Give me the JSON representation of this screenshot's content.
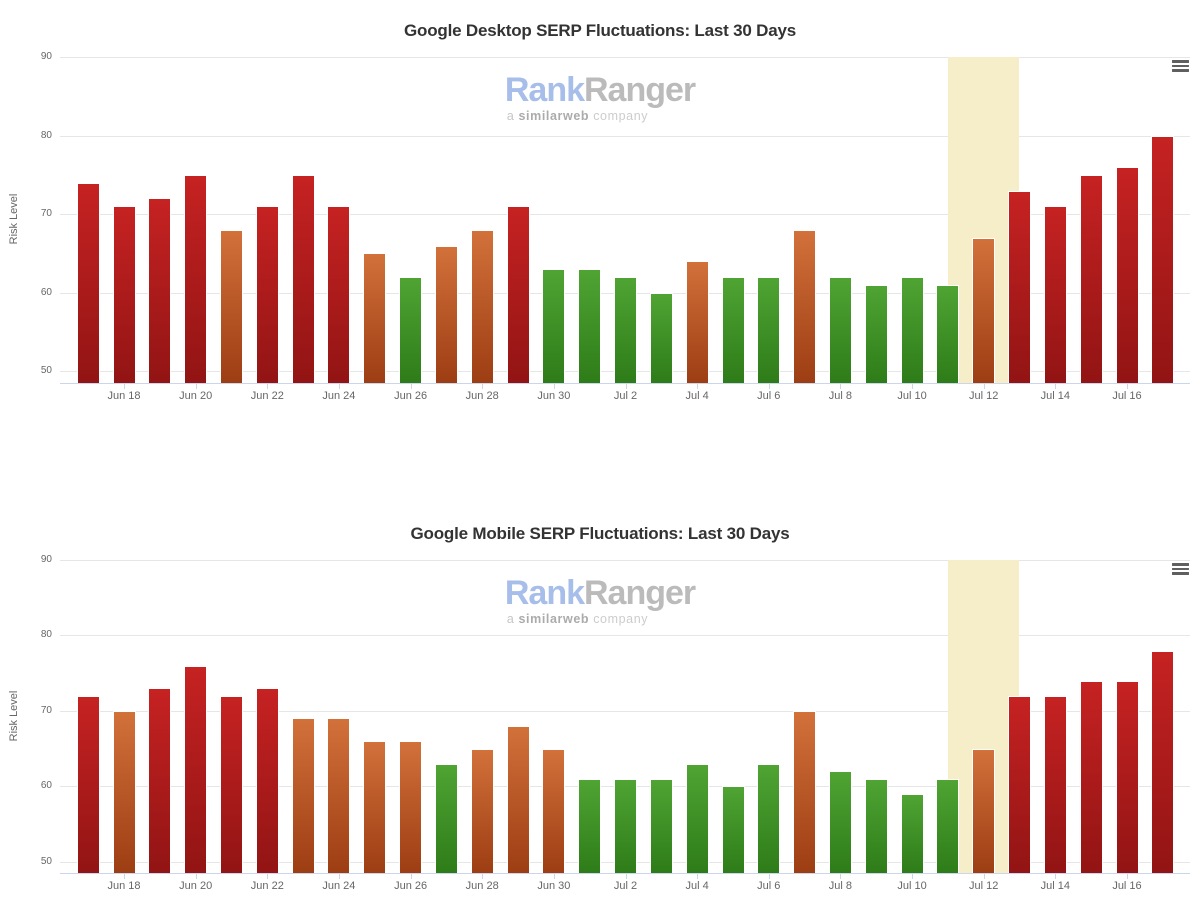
{
  "chart_data": [
    {
      "type": "bar",
      "title": "Google Desktop SERP Fluctuations: Last 30 Days",
      "ylabel": "Risk Level",
      "ylim": [
        48.5,
        90
      ],
      "y_ticks": [
        50,
        60,
        70,
        80,
        90
      ],
      "grid": "on",
      "legend": "none",
      "categories": [
        "Jun 17",
        "Jun 18",
        "Jun 19",
        "Jun 20",
        "Jun 21",
        "Jun 22",
        "Jun 23",
        "Jun 24",
        "Jun 25",
        "Jun 26",
        "Jun 27",
        "Jun 28",
        "Jun 29",
        "Jun 30",
        "Jul 1",
        "Jul 2",
        "Jul 3",
        "Jul 4",
        "Jul 5",
        "Jul 6",
        "Jul 7",
        "Jul 8",
        "Jul 9",
        "Jul 10",
        "Jul 11",
        "Jul 12",
        "Jul 13",
        "Jul 14",
        "Jul 15",
        "Jul 16",
        "Jul 17"
      ],
      "values": [
        74,
        71,
        72,
        75,
        68,
        71,
        75,
        71,
        65,
        62,
        66,
        68,
        71,
        63,
        63,
        62,
        60,
        64,
        62,
        62,
        68,
        62,
        61,
        62,
        61,
        67,
        73,
        71,
        75,
        76,
        80
      ],
      "x_tick_labels": [
        "Jun 18",
        "Jun 20",
        "Jun 22",
        "Jun 24",
        "Jun 26",
        "Jun 28",
        "Jun 30",
        "Jul 2",
        "Jul 4",
        "Jul 6",
        "Jul 8",
        "Jul 10",
        "Jul 12",
        "Jul 14",
        "Jul 16"
      ],
      "plot_band": {
        "from": "Jul 11",
        "to": "Jul 13"
      }
    },
    {
      "type": "bar",
      "title": "Google Mobile SERP Fluctuations: Last 30 Days",
      "ylabel": "Risk Level",
      "ylim": [
        48.5,
        90
      ],
      "y_ticks": [
        50,
        60,
        70,
        80,
        90
      ],
      "grid": "on",
      "legend": "none",
      "categories": [
        "Jun 17",
        "Jun 18",
        "Jun 19",
        "Jun 20",
        "Jun 21",
        "Jun 22",
        "Jun 23",
        "Jun 24",
        "Jun 25",
        "Jun 26",
        "Jun 27",
        "Jun 28",
        "Jun 29",
        "Jun 30",
        "Jul 1",
        "Jul 2",
        "Jul 3",
        "Jul 4",
        "Jul 5",
        "Jul 6",
        "Jul 7",
        "Jul 8",
        "Jul 9",
        "Jul 10",
        "Jul 11",
        "Jul 12",
        "Jul 13",
        "Jul 14",
        "Jul 15",
        "Jul 16",
        "Jul 17"
      ],
      "values": [
        72,
        70,
        73,
        76,
        72,
        73,
        69,
        69,
        66,
        66,
        63,
        65,
        68,
        65,
        61,
        61,
        61,
        63,
        60,
        63,
        70,
        62,
        61,
        59,
        61,
        65,
        72,
        72,
        74,
        74,
        78
      ],
      "x_tick_labels": [
        "Jun 18",
        "Jun 20",
        "Jun 22",
        "Jun 24",
        "Jun 26",
        "Jun 28",
        "Jun 30",
        "Jul 2",
        "Jul 4",
        "Jul 6",
        "Jul 8",
        "Jul 10",
        "Jul 12",
        "Jul 14",
        "Jul 16"
      ],
      "plot_band": {
        "from": "Jul 11",
        "to": "Jul 13"
      }
    }
  ],
  "watermark": {
    "brand_first": "Rank",
    "brand_second": "Ranger",
    "tagline_prefix": "a",
    "tagline_brand": "similarweb",
    "tagline_suffix": "company"
  },
  "color_coding": {
    "green_max": 63,
    "orange_max": 70,
    "green": [
      "#4fa433",
      "#2e7c19"
    ],
    "orange": [
      "#d2713a",
      "#9d3d13"
    ],
    "red": [
      "#c62222",
      "#921414"
    ],
    "plot_band": "#f5eec8",
    "gridline": "#e6e6e6",
    "axis_line": "#ccd6eb",
    "tick_text": "#666666",
    "title_text": "#333333"
  },
  "icons": {
    "export_menu": "hamburger-menu-icon"
  }
}
